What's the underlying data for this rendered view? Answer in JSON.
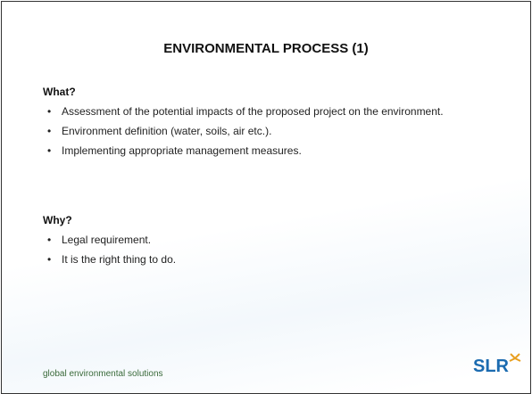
{
  "title": "ENVIRONMENTAL PROCESS (1)",
  "sections": [
    {
      "heading": "What?",
      "bullets": [
        "Assessment of the potential impacts of the proposed project on the environment.",
        "Environment definition (water, soils, air etc.).",
        "Implementing appropriate management measures."
      ]
    },
    {
      "heading": "Why?",
      "bullets": [
        "Legal requirement.",
        "It is the right thing to do."
      ]
    }
  ],
  "footer": "global environmental solutions",
  "logo": "SLR"
}
